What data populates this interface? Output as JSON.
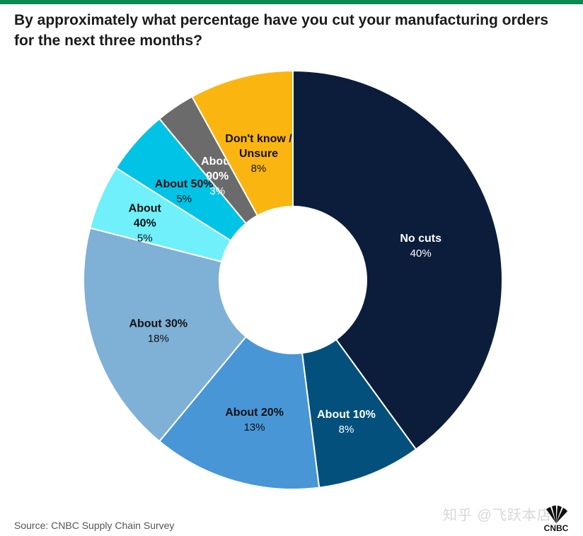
{
  "title": "By approximately what percentage have you cut your manufacturing orders for the next three months?",
  "source": "Source: CNBC Supply Chain Survey",
  "watermark": "知乎 @飞跃本店",
  "logo_text": "CNBC",
  "chart_data": {
    "type": "pie",
    "donut": true,
    "title": "By approximately what percentage have you cut your manufacturing orders for the next three months?",
    "slices": [
      {
        "label": [
          "No cuts"
        ],
        "value_label": "40%",
        "value": 40,
        "color": "#0b1d3a",
        "text_color": "#ffffff"
      },
      {
        "label": [
          "About 10%"
        ],
        "value_label": "8%",
        "value": 8,
        "color": "#03507d",
        "text_color": "#ffffff"
      },
      {
        "label": [
          "About 20%"
        ],
        "value_label": "13%",
        "value": 13,
        "color": "#4896d6",
        "text_color": "#111111"
      },
      {
        "label": [
          "About 30%"
        ],
        "value_label": "18%",
        "value": 18,
        "color": "#7fb0d6",
        "text_color": "#111111"
      },
      {
        "label": [
          "About",
          "40%"
        ],
        "value_label": "5%",
        "value": 5,
        "color": "#6ff0fb",
        "text_color": "#111111"
      },
      {
        "label": [
          "About 50%"
        ],
        "value_label": "5%",
        "value": 5,
        "color": "#00c3e6",
        "text_color": "#111111"
      },
      {
        "label": [
          "About",
          "90%"
        ],
        "value_label": "3%",
        "value": 3,
        "color": "#6b6b6b",
        "text_color": "#ffffff"
      },
      {
        "label": [
          "Don't know /",
          "Unsure"
        ],
        "value_label": "8%",
        "value": 8,
        "color": "#fbb510",
        "text_color": "#111111"
      }
    ]
  }
}
